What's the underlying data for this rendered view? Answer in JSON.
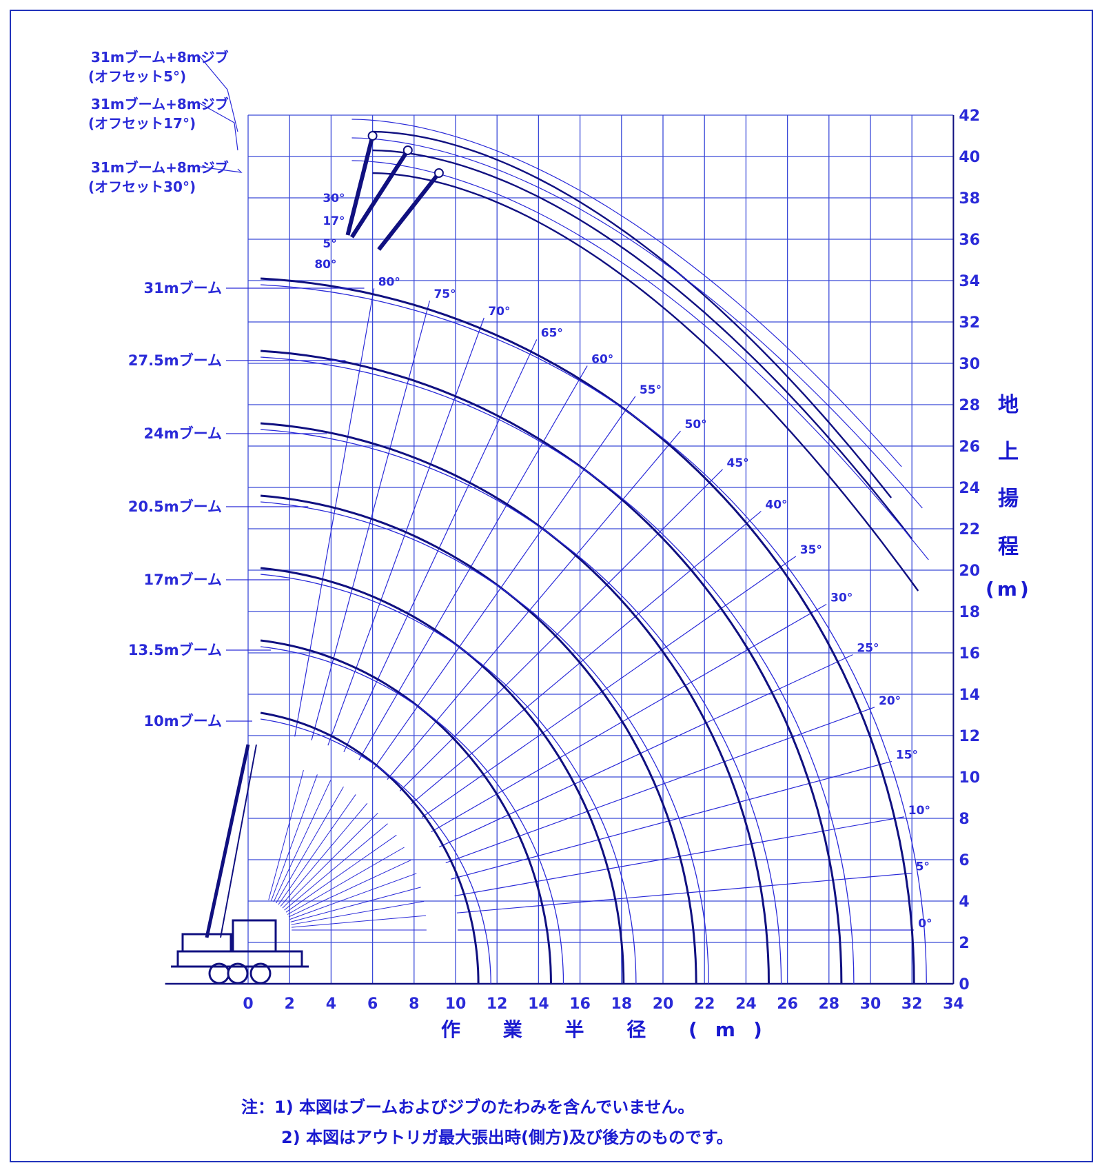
{
  "chart_data": {
    "type": "crane working range diagram",
    "x_axis": {
      "title": "作 業 半 径 (m)",
      "ticks": [
        0,
        2,
        4,
        6,
        8,
        10,
        12,
        14,
        16,
        18,
        20,
        22,
        24,
        26,
        28,
        30,
        32,
        34
      ],
      "range": [
        -4,
        34
      ]
    },
    "y_axis": {
      "title_chars": [
        "地",
        "上",
        "揚",
        "程"
      ],
      "unit": "(m)",
      "ticks": [
        0,
        2,
        4,
        6,
        8,
        10,
        12,
        14,
        16,
        18,
        20,
        22,
        24,
        26,
        28,
        30,
        32,
        34,
        36,
        38,
        40,
        42
      ],
      "range": [
        0,
        42
      ]
    },
    "grid": true,
    "booms": [
      {
        "label": "10mブーム",
        "length": 10
      },
      {
        "label": "13.5mブーム",
        "length": 13.5
      },
      {
        "label": "17mブーム",
        "length": 17
      },
      {
        "label": "20.5mブーム",
        "length": 20.5
      },
      {
        "label": "24mブーム",
        "length": 24
      },
      {
        "label": "27.5mブーム",
        "length": 27.5
      },
      {
        "label": "31mブーム",
        "length": 31
      }
    ],
    "jibs": [
      {
        "label": "31mブーム+8mジブ",
        "offset_label": "(オフセット5°)"
      },
      {
        "label": "31mブーム+8mジブ",
        "offset_label": "(オフセット17°)"
      },
      {
        "label": "31mブーム+8mジブ",
        "offset_label": "(オフセット30°)"
      }
    ],
    "jib_offset_marks": [
      "30°",
      "17°",
      "5°"
    ],
    "boom_angles": [
      "0°",
      "5°",
      "10°",
      "15°",
      "20°",
      "25°",
      "30°",
      "35°",
      "40°",
      "45°",
      "50°",
      "55°",
      "60°",
      "65°",
      "70°",
      "75°",
      "80°"
    ]
  },
  "notes": [
    "注：1) 本図はブームおよびジブのたわみを含んでいません。",
    "2) 本図はアウトリガ最大張出時(側方)及び後方のものです。"
  ],
  "colors": {
    "line": "#2a2ad8",
    "grid": "#3b4ad8",
    "heavy": "#101080"
  }
}
